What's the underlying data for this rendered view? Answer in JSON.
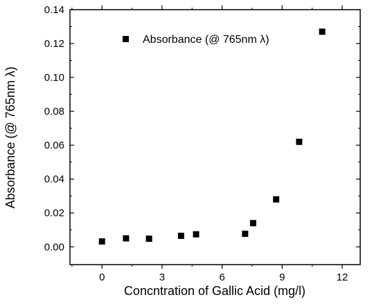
{
  "chart_data": {
    "type": "scatter",
    "title": "",
    "xlabel": "Concntration of Gallic Acid (mg/l)",
    "ylabel": "Absorbance (@ 765nm λ)",
    "xlim": [
      -1.6,
      12.9
    ],
    "ylim": [
      -0.0105,
      0.14
    ],
    "xticks": [
      0,
      3,
      6,
      9,
      12
    ],
    "xtick_labels": [
      "0",
      "3",
      "6",
      "9",
      "12"
    ],
    "yticks": [
      0.0,
      0.02,
      0.04,
      0.06,
      0.08,
      0.1,
      0.12,
      0.14
    ],
    "ytick_labels": [
      "0.00",
      "0.02",
      "0.04",
      "0.06",
      "0.08",
      "0.10",
      "0.12",
      "0.14"
    ],
    "grid": false,
    "legend_position": "top-center",
    "series": [
      {
        "name": "Absorbance (@ 765nm λ)",
        "marker": "square",
        "color": "#000000",
        "x": [
          0,
          1.2,
          2.35,
          3.95,
          4.7,
          7.15,
          7.55,
          8.7,
          9.85,
          11.0
        ],
        "y": [
          0.0032,
          0.005,
          0.0048,
          0.0065,
          0.0074,
          0.0077,
          0.014,
          0.028,
          0.062,
          0.127
        ]
      }
    ]
  }
}
